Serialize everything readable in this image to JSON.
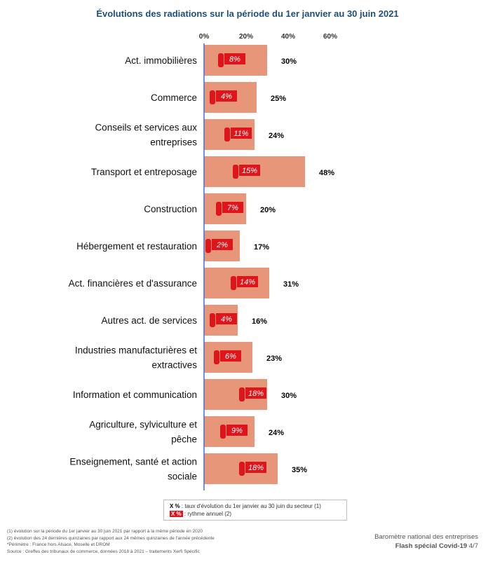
{
  "chart_data": {
    "type": "bar",
    "orientation": "horizontal",
    "title": "Évolutions des radiations sur la période du 1er janvier au 30 juin 2021",
    "xlim": [
      0,
      60
    ],
    "x_ticks": [
      "0%",
      "20%",
      "40%",
      "60%"
    ],
    "bar_color": "#e8967a",
    "marker_color": "#e0151b",
    "categories": [
      [
        "Act. immobilières"
      ],
      [
        "Commerce"
      ],
      [
        "Conseils et services aux",
        "entreprises"
      ],
      [
        "Transport et entreposage"
      ],
      [
        "Construction"
      ],
      [
        "Hébergement et restauration"
      ],
      [
        "Act. financières et d'assurance"
      ],
      [
        "Autres act. de services"
      ],
      [
        "Industries manufacturières et",
        "extractives"
      ],
      [
        "Information et communication"
      ],
      [
        "Agriculture, sylviculture et",
        "pêche"
      ],
      [
        "Enseignement, santé et action",
        "sociale"
      ]
    ],
    "series": [
      {
        "name": "taux d'évolution du 1er janvier au 30 juin du secteur (1)",
        "values": [
          30,
          25,
          24,
          48,
          20,
          17,
          31,
          16,
          23,
          30,
          24,
          35
        ],
        "labels": [
          "30%",
          "25%",
          "24%",
          "48%",
          "20%",
          "17%",
          "31%",
          "16%",
          "23%",
          "30%",
          "24%",
          "35%"
        ]
      },
      {
        "name": "rythme annuel (2)",
        "values": [
          8,
          4,
          11,
          15,
          7,
          2,
          14,
          4,
          6,
          18,
          9,
          18
        ],
        "labels": [
          "8%",
          "4%",
          "11%",
          "15%",
          "7%",
          "2%",
          "14%",
          "4%",
          "6%",
          "18%",
          "9%",
          "18%"
        ]
      }
    ]
  },
  "legend": {
    "item1_swatch": "X %",
    "item1_text": " : taux d'évolution du 1er janvier au 30 juin du secteur (1)",
    "item2_swatch": "X %",
    "item2_text": " : rythme annuel (2)"
  },
  "footnotes": [
    "(1) évolution sur la période du 1er janvier au 30 juin 2021 par rapport à la même période en 2020",
    "(2) évolution des 24 dernières quinzaines par rapport aux 24 mêmes quinzaines de l'année précédente",
    "*Périmètre : France hors Alsace, Moselle et DROM",
    "Source : Greffes des tribunaux de commerce, données 2018 à 2021 – traitements Xerfi Spécific"
  ],
  "brand": {
    "line1": "Baromètre national des entreprises",
    "flash": "Flash spécial Covid-19",
    "page": "4/7"
  }
}
